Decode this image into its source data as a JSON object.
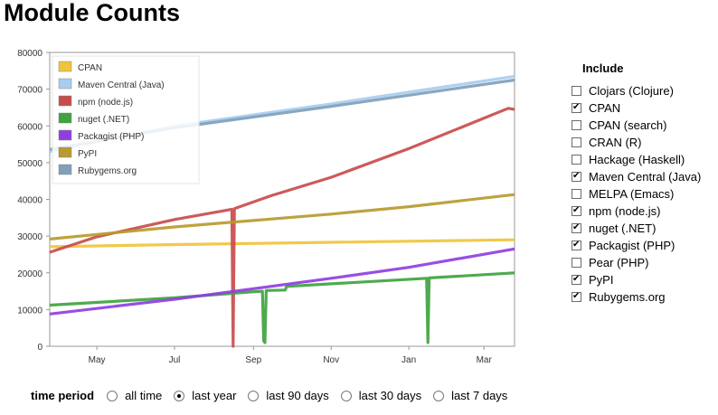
{
  "page": {
    "title": "Module Counts"
  },
  "include": {
    "heading": "Include",
    "items": [
      {
        "label": "Clojars (Clojure)",
        "checked": false
      },
      {
        "label": "CPAN",
        "checked": true
      },
      {
        "label": "CPAN (search)",
        "checked": false
      },
      {
        "label": "CRAN (R)",
        "checked": false
      },
      {
        "label": "Hackage (Haskell)",
        "checked": false
      },
      {
        "label": "Maven Central (Java)",
        "checked": true
      },
      {
        "label": "MELPA (Emacs)",
        "checked": false
      },
      {
        "label": "npm (node.js)",
        "checked": true
      },
      {
        "label": "nuget (.NET)",
        "checked": true
      },
      {
        "label": "Packagist (PHP)",
        "checked": true
      },
      {
        "label": "Pear (PHP)",
        "checked": false
      },
      {
        "label": "PyPI",
        "checked": true
      },
      {
        "label": "Rubygems.org",
        "checked": true
      }
    ]
  },
  "period": {
    "label": "time period",
    "options": [
      {
        "label": "all time",
        "selected": false
      },
      {
        "label": "last year",
        "selected": true
      },
      {
        "label": "last 90 days",
        "selected": false
      },
      {
        "label": "last 30 days",
        "selected": false
      },
      {
        "label": "last 7 days",
        "selected": false
      }
    ]
  },
  "chart_data": {
    "type": "line",
    "xlim": [
      "2014-03-25",
      "2015-03-25"
    ],
    "ylim": [
      0,
      80000
    ],
    "yticks": [
      0,
      10000,
      20000,
      30000,
      40000,
      50000,
      60000,
      70000,
      80000
    ],
    "xticks": [
      {
        "label": "May",
        "date": "2014-05-01"
      },
      {
        "label": "Jul",
        "date": "2014-07-01"
      },
      {
        "label": "Sep",
        "date": "2014-09-01"
      },
      {
        "label": "Nov",
        "date": "2014-11-01"
      },
      {
        "label": "Jan",
        "date": "2015-01-01"
      },
      {
        "label": "Mar",
        "date": "2015-03-01"
      }
    ],
    "legend_position": "top-left",
    "grid": false,
    "series": [
      {
        "name": "CPAN",
        "color": "#f0c43c",
        "points": [
          [
            "2014-03-25",
            27100
          ],
          [
            "2014-07-01",
            27700
          ],
          [
            "2014-11-01",
            28300
          ],
          [
            "2015-03-25",
            29000
          ]
        ]
      },
      {
        "name": "Maven Central (Java)",
        "color": "#a9cdef",
        "points": [
          [
            "2014-03-25",
            53000
          ],
          [
            "2014-07-01",
            60000
          ],
          [
            "2014-11-01",
            66000
          ],
          [
            "2015-03-25",
            73500
          ]
        ]
      },
      {
        "name": "npm (node.js)",
        "color": "#c94c4c",
        "points": [
          [
            "2014-03-25",
            25600
          ],
          [
            "2014-05-01",
            29800
          ],
          [
            "2014-07-01",
            34500
          ],
          [
            "2014-08-15",
            37300
          ],
          [
            "2014-08-16",
            0
          ],
          [
            "2014-08-17",
            37500
          ],
          [
            "2014-09-15",
            41000
          ],
          [
            "2014-11-01",
            46000
          ],
          [
            "2015-01-01",
            53800
          ],
          [
            "2015-03-20",
            64800
          ],
          [
            "2015-03-25",
            64500
          ]
        ]
      },
      {
        "name": "nuget (.NET)",
        "color": "#3fa33f",
        "points": [
          [
            "2014-03-25",
            11200
          ],
          [
            "2014-07-01",
            13200
          ],
          [
            "2014-08-30",
            14800
          ],
          [
            "2014-09-08",
            15000
          ],
          [
            "2014-09-09",
            1500
          ],
          [
            "2014-09-10",
            1000
          ],
          [
            "2014-09-11",
            15200
          ],
          [
            "2014-09-26",
            15300
          ],
          [
            "2014-09-27",
            16300
          ],
          [
            "2014-11-01",
            17000
          ],
          [
            "2015-01-15",
            18500
          ],
          [
            "2015-01-16",
            1000
          ],
          [
            "2015-01-17",
            18600
          ],
          [
            "2015-03-25",
            20000
          ]
        ]
      },
      {
        "name": "Packagist (PHP)",
        "color": "#8f3fe0",
        "points": [
          [
            "2014-03-25",
            8800
          ],
          [
            "2014-07-01",
            12800
          ],
          [
            "2014-11-01",
            18500
          ],
          [
            "2015-01-01",
            21500
          ],
          [
            "2015-03-25",
            26500
          ]
        ]
      },
      {
        "name": "PyPI",
        "color": "#b99a2e",
        "points": [
          [
            "2014-03-25",
            29200
          ],
          [
            "2014-07-01",
            32500
          ],
          [
            "2014-11-01",
            36000
          ],
          [
            "2015-01-01",
            38000
          ],
          [
            "2015-03-25",
            41300
          ]
        ]
      },
      {
        "name": "Rubygems.org",
        "color": "#7f9fba",
        "points": [
          [
            "2014-03-25",
            53600
          ],
          [
            "2014-07-01",
            59500
          ],
          [
            "2014-11-01",
            65300
          ],
          [
            "2015-03-25",
            72500
          ]
        ]
      }
    ]
  }
}
